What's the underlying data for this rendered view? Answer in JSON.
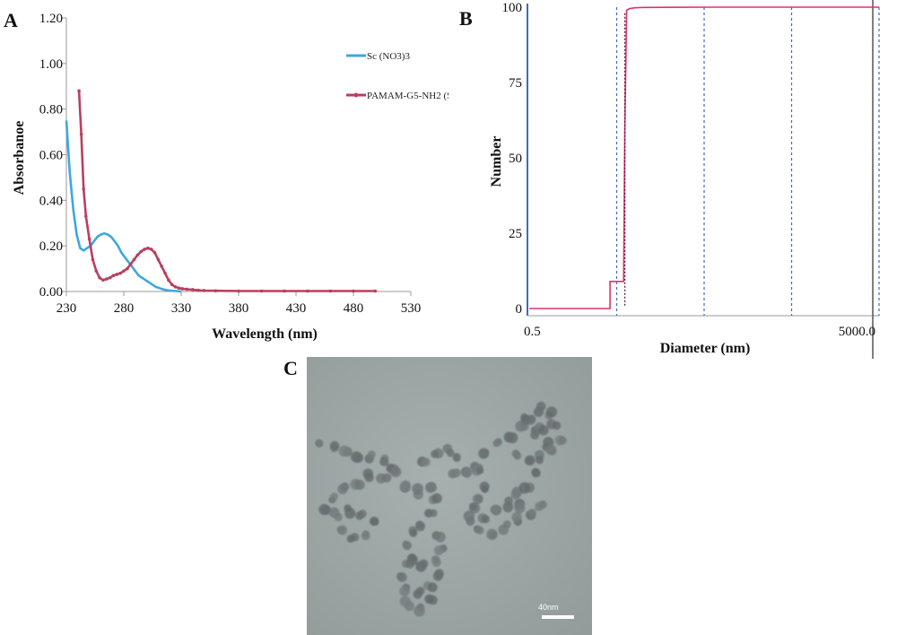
{
  "figure": {
    "panels": [
      {
        "letter": "A"
      },
      {
        "letter": "B"
      },
      {
        "letter": "C"
      }
    ]
  },
  "chart_data": [
    {
      "panel": "A",
      "type": "line",
      "title": "",
      "xlabel": "Wavelength (nm)",
      "ylabel": "Absorbanoe",
      "xlim": [
        230,
        530
      ],
      "ylim": [
        0,
        1.2
      ],
      "xticks": [
        230,
        280,
        330,
        380,
        430,
        480,
        530
      ],
      "xtick_labels": [
        "230",
        "280",
        "330",
        "380",
        "430",
        "480",
        "530"
      ],
      "yticks": [
        0,
        0.2,
        0.4,
        0.6,
        0.8,
        1.0,
        1.2
      ],
      "ytick_labels": [
        "0.00",
        "0.20",
        "0.40",
        "0.60",
        "0.80",
        "1.00",
        "1.20"
      ],
      "grid": false,
      "legend_position": "right",
      "series": [
        {
          "name": "Sc (NO3)3",
          "color": "#3fa7dd",
          "markers": false,
          "x": [
            230,
            233,
            236,
            239,
            242,
            245,
            248,
            251,
            254,
            257,
            260,
            263,
            266,
            269,
            272,
            275,
            278,
            281,
            284,
            287,
            290,
            293,
            296,
            299,
            302,
            305,
            308,
            311,
            314,
            318,
            322,
            326,
            330
          ],
          "y": [
            0.75,
            0.52,
            0.36,
            0.25,
            0.19,
            0.18,
            0.19,
            0.2,
            0.22,
            0.24,
            0.25,
            0.255,
            0.25,
            0.24,
            0.22,
            0.2,
            0.17,
            0.15,
            0.13,
            0.11,
            0.09,
            0.07,
            0.06,
            0.05,
            0.04,
            0.03,
            0.02,
            0.015,
            0.01,
            0.005,
            0.003,
            0.002,
            0.0
          ]
        },
        {
          "name": "PAMAM-G5-NH2 (Sc3+)55",
          "color": "#b8405e",
          "markers": true,
          "x": [
            241,
            243,
            245,
            247,
            250,
            253,
            256,
            259,
            262,
            265,
            268,
            271,
            274,
            277,
            280,
            283,
            286,
            289,
            292,
            295,
            298,
            301,
            304,
            307,
            310,
            313,
            316,
            319,
            322,
            325,
            328,
            331,
            335,
            340,
            345,
            350,
            360,
            380,
            400,
            420,
            440,
            460,
            480,
            499
          ],
          "y": [
            0.88,
            0.69,
            0.45,
            0.33,
            0.23,
            0.14,
            0.09,
            0.06,
            0.05,
            0.055,
            0.06,
            0.07,
            0.075,
            0.08,
            0.09,
            0.1,
            0.12,
            0.14,
            0.16,
            0.175,
            0.185,
            0.19,
            0.185,
            0.17,
            0.14,
            0.11,
            0.08,
            0.05,
            0.03,
            0.02,
            0.015,
            0.012,
            0.01,
            0.008,
            0.005,
            0.004,
            0.003,
            0.002,
            0.002,
            0.002,
            0.002,
            0.002,
            0.002,
            0.002
          ]
        }
      ]
    },
    {
      "panel": "B",
      "type": "line",
      "title": "",
      "xlabel": "Diameter (nm)",
      "ylabel": "Number",
      "x_scale": "log",
      "xlim": [
        0.5,
        5000.0
      ],
      "ylim": [
        0,
        100
      ],
      "xtick_labels": [
        "0.5",
        "5000.0"
      ],
      "yticks": [
        0,
        25,
        50,
        75,
        100
      ],
      "ytick_labels": [
        "0",
        "25",
        "50",
        "75",
        "100"
      ],
      "grid": "vertical dashed",
      "series": [
        {
          "name": "",
          "color": "#e0306e",
          "x": [
            0.5,
            4.2,
            4.2,
            6.0,
            6.2,
            6.5,
            7.0,
            8.0,
            10.0,
            50.0,
            200.0,
            1000.0,
            5000.0
          ],
          "y": [
            0,
            0,
            9,
            9,
            60,
            99,
            99.5,
            99.8,
            99.9,
            100,
            100,
            100,
            100
          ]
        }
      ]
    }
  ],
  "tem": {
    "scale_bar_label": "40nm"
  }
}
